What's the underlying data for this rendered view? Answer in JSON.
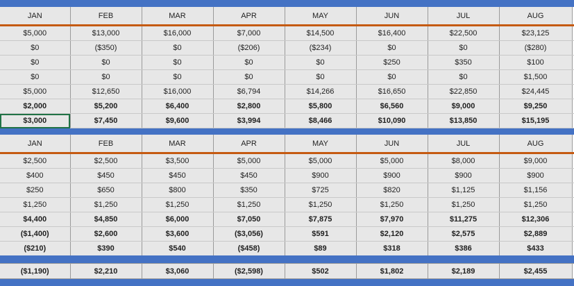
{
  "months": [
    "JAN",
    "FEB",
    "MAR",
    "APR",
    "MAY",
    "JUN",
    "JUL",
    "AUG"
  ],
  "section1": {
    "rows": [
      {
        "bold": false,
        "values": [
          "$5,000",
          "$13,000",
          "$16,000",
          "$7,000",
          "$14,500",
          "$16,400",
          "$22,500",
          "$23,125"
        ]
      },
      {
        "bold": false,
        "values": [
          "$0",
          "($350)",
          "$0",
          "($206)",
          "($234)",
          "$0",
          "$0",
          "($280)"
        ]
      },
      {
        "bold": false,
        "values": [
          "$0",
          "$0",
          "$0",
          "$0",
          "$0",
          "$250",
          "$350",
          "$100"
        ]
      },
      {
        "bold": false,
        "values": [
          "$0",
          "$0",
          "$0",
          "$0",
          "$0",
          "$0",
          "$0",
          "$1,500"
        ]
      },
      {
        "bold": false,
        "values": [
          "$5,000",
          "$12,650",
          "$16,000",
          "$6,794",
          "$14,266",
          "$16,650",
          "$22,850",
          "$24,445"
        ]
      },
      {
        "bold": true,
        "values": [
          "$2,000",
          "$5,200",
          "$6,400",
          "$2,800",
          "$5,800",
          "$6,560",
          "$9,000",
          "$9,250"
        ]
      },
      {
        "bold": true,
        "values": [
          "$3,000",
          "$7,450",
          "$9,600",
          "$3,994",
          "$8,466",
          "$10,090",
          "$13,850",
          "$15,195"
        ]
      }
    ]
  },
  "section2": {
    "rows": [
      {
        "bold": false,
        "values": [
          "$2,500",
          "$2,500",
          "$3,500",
          "$5,000",
          "$5,000",
          "$5,000",
          "$8,000",
          "$9,000"
        ]
      },
      {
        "bold": false,
        "values": [
          "$400",
          "$450",
          "$450",
          "$450",
          "$900",
          "$900",
          "$900",
          "$900"
        ]
      },
      {
        "bold": false,
        "values": [
          "$250",
          "$650",
          "$800",
          "$350",
          "$725",
          "$820",
          "$1,125",
          "$1,156"
        ]
      },
      {
        "bold": false,
        "values": [
          "$1,250",
          "$1,250",
          "$1,250",
          "$1,250",
          "$1,250",
          "$1,250",
          "$1,250",
          "$1,250"
        ]
      },
      {
        "bold": true,
        "values": [
          "$4,400",
          "$4,850",
          "$6,000",
          "$7,050",
          "$7,875",
          "$7,970",
          "$11,275",
          "$12,306"
        ]
      },
      {
        "bold": true,
        "values": [
          "($1,400)",
          "$2,600",
          "$3,600",
          "($3,056)",
          "$591",
          "$2,120",
          "$2,575",
          "$2,889"
        ]
      },
      {
        "bold": true,
        "values": [
          "($210)",
          "$390",
          "$540",
          "($458)",
          "$89",
          "$318",
          "$386",
          "$433"
        ]
      }
    ]
  },
  "totals": {
    "values": [
      "($1,190)",
      "$2,210",
      "$3,060",
      "($2,598)",
      "$502",
      "$1,802",
      "$2,189",
      "$2,455"
    ]
  },
  "colors": {
    "band": "#4472c4",
    "header_rule": "#c55a11",
    "cell_bg": "#e7e7e7",
    "selection": "#217346"
  }
}
